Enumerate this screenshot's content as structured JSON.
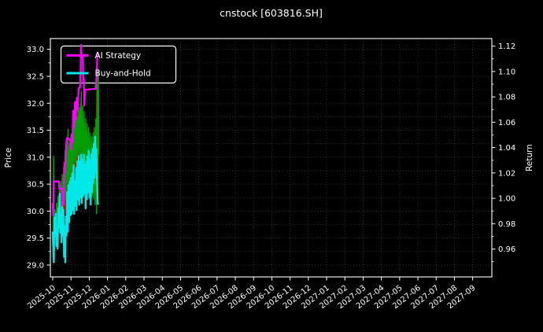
{
  "title": "cnstock [603816.SH]",
  "chart_data": {
    "type": "line",
    "title": "cnstock [603816.SH]",
    "xlabel": "",
    "ylabel_left": "Price",
    "ylabel_right": "Return",
    "background_color": "#000000",
    "text_color": "#ffffff",
    "grid": true,
    "grid_color": "#3a3a3a",
    "grid_style": "dotted",
    "legend_position": "upper-left",
    "x_unit": "months since 2025-10",
    "xlim_months": [
      -0.13,
      24.05
    ],
    "ylim_left": [
      28.78,
      33.2
    ],
    "ylim_right": [
      0.938,
      1.126
    ],
    "x_tick_labels": [
      "2025-10",
      "2025-11",
      "2025-12",
      "2026-01",
      "2026-02",
      "2026-03",
      "2026-04",
      "2026-05",
      "2026-06",
      "2026-07",
      "2026-08",
      "2026-09",
      "2026-10",
      "2026-11",
      "2026-12",
      "2027-01",
      "2027-02",
      "2027-03",
      "2027-04",
      "2027-05",
      "2027-06",
      "2027-07",
      "2027-08",
      "2027-09"
    ],
    "y_left_tick_labels": [
      "29.0",
      "29.5",
      "30.0",
      "30.5",
      "31.0",
      "31.5",
      "32.0",
      "32.5",
      "33.0"
    ],
    "y_right_tick_labels": [
      "0.96",
      "0.98",
      "1.00",
      "1.02",
      "1.04",
      "1.06",
      "1.08",
      "1.10",
      "1.12"
    ],
    "legend": {
      "items": [
        {
          "label": "AI Strategy",
          "color": "#ff00ff"
        },
        {
          "label": "Buy-and-Hold",
          "color": "#00e8e8"
        }
      ]
    },
    "series": [
      {
        "name": "unlabeled-red",
        "color": "#e00000",
        "width": 1.4,
        "axis": "left",
        "in_legend": false,
        "points": [
          [
            0.45,
            29.75
          ],
          [
            0.5,
            30.25
          ],
          [
            0.54,
            29.62
          ],
          [
            0.58,
            30.4
          ],
          [
            0.62,
            29.8
          ],
          [
            0.66,
            30.55
          ],
          [
            0.7,
            29.95
          ],
          [
            0.74,
            30.72
          ],
          [
            0.78,
            30.05
          ],
          [
            0.82,
            30.92
          ],
          [
            0.86,
            30.22
          ],
          [
            0.9,
            31.05
          ],
          [
            0.94,
            30.35
          ],
          [
            0.98,
            31.15
          ],
          [
            1.02,
            30.42
          ],
          [
            1.06,
            31.3
          ],
          [
            1.1,
            30.52
          ],
          [
            1.14,
            31.62
          ],
          [
            1.18,
            30.62
          ],
          [
            1.22,
            31.92
          ],
          [
            1.26,
            30.72
          ],
          [
            1.3,
            31.55
          ],
          [
            1.34,
            30.82
          ],
          [
            1.38,
            32.05
          ],
          [
            1.42,
            30.92
          ],
          [
            1.46,
            31.7
          ],
          [
            1.5,
            30.85
          ],
          [
            1.54,
            32.02
          ],
          [
            1.58,
            31.02
          ],
          [
            1.62,
            31.85
          ],
          [
            1.66,
            30.92
          ],
          [
            1.7,
            31.72
          ],
          [
            1.74,
            30.82
          ],
          [
            1.78,
            31.62
          ],
          [
            1.82,
            30.72
          ],
          [
            1.86,
            31.52
          ],
          [
            1.9,
            30.62
          ],
          [
            1.94,
            31.45
          ],
          [
            1.98,
            30.55
          ],
          [
            2.02,
            31.35
          ],
          [
            2.06,
            30.48
          ],
          [
            2.1,
            31.28
          ],
          [
            2.14,
            30.42
          ],
          [
            2.18,
            31.22
          ],
          [
            2.22,
            30.38
          ],
          [
            2.26,
            31.32
          ],
          [
            2.3,
            30.35
          ],
          [
            2.34,
            31.52
          ],
          [
            2.38,
            30.28
          ],
          [
            2.42,
            32.52
          ],
          [
            2.45,
            30.42
          ],
          [
            2.48,
            31.92
          ],
          [
            2.51,
            31.45
          ]
        ]
      },
      {
        "name": "unlabeled-green",
        "color": "#00a000",
        "width": 1.4,
        "axis": "left",
        "in_legend": false,
        "points": [
          [
            0.02,
            29.25
          ],
          [
            0.05,
            31.02
          ],
          [
            0.08,
            29.45
          ],
          [
            0.12,
            30.02
          ],
          [
            0.16,
            29.52
          ],
          [
            0.2,
            30.15
          ],
          [
            0.24,
            29.62
          ],
          [
            0.28,
            30.28
          ],
          [
            0.32,
            29.72
          ],
          [
            0.36,
            30.42
          ],
          [
            0.4,
            29.82
          ],
          [
            0.44,
            30.55
          ],
          [
            0.48,
            29.92
          ],
          [
            0.52,
            30.68
          ],
          [
            0.56,
            30.02
          ],
          [
            0.6,
            30.82
          ],
          [
            0.64,
            30.12
          ],
          [
            0.68,
            31.12
          ],
          [
            0.72,
            30.22
          ],
          [
            0.76,
            31.35
          ],
          [
            0.8,
            30.32
          ],
          [
            0.84,
            31.52
          ],
          [
            0.88,
            30.42
          ],
          [
            0.92,
            31.25
          ],
          [
            0.96,
            30.52
          ],
          [
            1.0,
            31.42
          ],
          [
            1.04,
            30.62
          ],
          [
            1.08,
            31.55
          ],
          [
            1.12,
            30.72
          ],
          [
            1.16,
            31.82
          ],
          [
            1.2,
            30.82
          ],
          [
            1.24,
            32.02
          ],
          [
            1.28,
            30.92
          ],
          [
            1.32,
            31.75
          ],
          [
            1.36,
            31.02
          ],
          [
            1.4,
            32.15
          ],
          [
            1.44,
            31.02
          ],
          [
            1.48,
            31.92
          ],
          [
            1.52,
            30.92
          ],
          [
            1.56,
            32.22
          ],
          [
            1.6,
            30.82
          ],
          [
            1.64,
            31.95
          ],
          [
            1.68,
            30.72
          ],
          [
            1.72,
            31.85
          ],
          [
            1.76,
            30.62
          ],
          [
            1.8,
            31.72
          ],
          [
            1.84,
            30.52
          ],
          [
            1.88,
            31.62
          ],
          [
            1.92,
            30.45
          ],
          [
            1.96,
            31.55
          ],
          [
            2.0,
            30.38
          ],
          [
            2.04,
            31.45
          ],
          [
            2.08,
            30.32
          ],
          [
            2.12,
            31.38
          ],
          [
            2.16,
            30.28
          ],
          [
            2.2,
            31.45
          ],
          [
            2.24,
            30.22
          ],
          [
            2.28,
            31.55
          ],
          [
            2.32,
            30.12
          ],
          [
            2.36,
            31.72
          ],
          [
            2.4,
            29.95
          ],
          [
            2.44,
            32.92
          ],
          [
            2.47,
            30.15
          ],
          [
            2.5,
            32.62
          ],
          [
            2.52,
            31.05
          ]
        ]
      },
      {
        "name": "Buy-and-Hold",
        "color": "#00e8e8",
        "width": 2.3,
        "axis": "left",
        "in_legend": true,
        "points": [
          [
            0.0,
            29.62
          ],
          [
            0.03,
            29.3
          ],
          [
            0.06,
            29.05
          ],
          [
            0.1,
            29.88
          ],
          [
            0.13,
            29.55
          ],
          [
            0.17,
            29.95
          ],
          [
            0.2,
            29.35
          ],
          [
            0.24,
            29.62
          ],
          [
            0.27,
            29.3
          ],
          [
            0.31,
            30.05
          ],
          [
            0.34,
            29.7
          ],
          [
            0.38,
            30.32
          ],
          [
            0.41,
            29.6
          ],
          [
            0.45,
            29.95
          ],
          [
            0.48,
            29.42
          ],
          [
            0.52,
            30.18
          ],
          [
            0.55,
            29.55
          ],
          [
            0.58,
            30.02
          ],
          [
            0.62,
            29.15
          ],
          [
            0.65,
            29.72
          ],
          [
            0.69,
            29.05
          ],
          [
            0.72,
            29.9
          ],
          [
            0.76,
            29.55
          ],
          [
            0.79,
            30.35
          ],
          [
            0.83,
            29.62
          ],
          [
            0.86,
            30.48
          ],
          [
            0.9,
            29.8
          ],
          [
            0.93,
            30.55
          ],
          [
            0.97,
            29.92
          ],
          [
            1.0,
            30.62
          ],
          [
            1.04,
            29.95
          ],
          [
            1.07,
            30.7
          ],
          [
            1.11,
            30.02
          ],
          [
            1.14,
            30.85
          ],
          [
            1.17,
            29.95
          ],
          [
            1.21,
            30.55
          ],
          [
            1.24,
            30.1
          ],
          [
            1.28,
            30.8
          ],
          [
            1.31,
            30.02
          ],
          [
            1.35,
            30.92
          ],
          [
            1.38,
            30.22
          ],
          [
            1.42,
            31.02
          ],
          [
            1.45,
            30.12
          ],
          [
            1.49,
            30.92
          ],
          [
            1.52,
            30.25
          ],
          [
            1.56,
            31.05
          ],
          [
            1.59,
            30.15
          ],
          [
            1.63,
            30.95
          ],
          [
            1.66,
            30.28
          ],
          [
            1.7,
            31.05
          ],
          [
            1.73,
            30.32
          ],
          [
            1.77,
            30.85
          ],
          [
            1.8,
            30.05
          ],
          [
            1.84,
            30.92
          ],
          [
            1.87,
            30.22
          ],
          [
            1.9,
            31.02
          ],
          [
            1.94,
            30.35
          ],
          [
            1.97,
            31.12
          ],
          [
            2.01,
            30.25
          ],
          [
            2.04,
            30.95
          ],
          [
            2.08,
            30.12
          ],
          [
            2.11,
            31.05
          ],
          [
            2.15,
            30.35
          ],
          [
            2.18,
            31.15
          ],
          [
            2.22,
            30.52
          ],
          [
            2.25,
            31.25
          ],
          [
            2.29,
            30.62
          ],
          [
            2.32,
            31.38
          ],
          [
            2.36,
            30.72
          ],
          [
            2.39,
            31.15
          ],
          [
            2.43,
            30.45
          ],
          [
            2.46,
            30.15
          ],
          [
            2.5,
            30.12
          ]
        ]
      },
      {
        "name": "AI Strategy",
        "color": "#ff00ff",
        "width": 2.3,
        "axis": "left",
        "in_legend": true,
        "points": [
          [
            0.0,
            30.15
          ],
          [
            0.02,
            29.92
          ],
          [
            0.04,
            30.05
          ],
          [
            0.06,
            30.55
          ],
          [
            0.34,
            30.55
          ],
          [
            0.36,
            30.42
          ],
          [
            0.5,
            30.42
          ],
          [
            0.53,
            30.1
          ],
          [
            0.56,
            30.32
          ],
          [
            0.58,
            30.12
          ],
          [
            0.62,
            30.5
          ],
          [
            0.65,
            30.9
          ],
          [
            0.68,
            30.72
          ],
          [
            0.72,
            31.08
          ],
          [
            0.76,
            31.32
          ],
          [
            0.8,
            31.36
          ],
          [
            0.95,
            31.32
          ],
          [
            1.0,
            31.14
          ],
          [
            1.04,
            31.42
          ],
          [
            1.08,
            31.28
          ],
          [
            1.12,
            31.86
          ],
          [
            1.16,
            31.55
          ],
          [
            1.22,
            32.02
          ],
          [
            1.26,
            31.7
          ],
          [
            1.32,
            32.1
          ],
          [
            1.36,
            31.88
          ],
          [
            1.42,
            32.28
          ],
          [
            1.5,
            32.3
          ],
          [
            1.53,
            32.6
          ],
          [
            1.55,
            33.08
          ],
          [
            1.58,
            32.88
          ],
          [
            1.6,
            32.86
          ],
          [
            1.65,
            32.86
          ],
          [
            1.67,
            32.4
          ],
          [
            1.7,
            32.46
          ],
          [
            1.73,
            31.96
          ],
          [
            1.77,
            32.25
          ],
          [
            2.36,
            32.27
          ],
          [
            2.41,
            32.55
          ],
          [
            2.45,
            32.95
          ]
        ]
      }
    ]
  }
}
